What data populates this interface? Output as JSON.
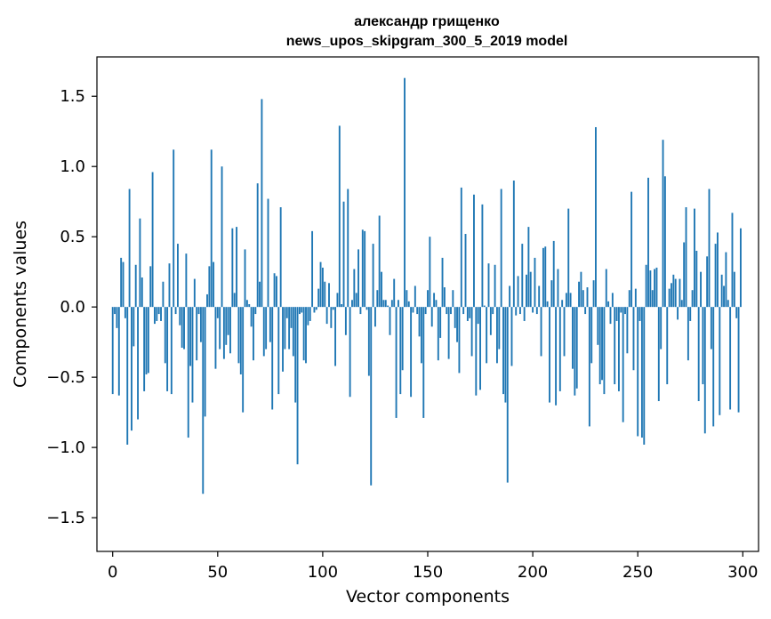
{
  "chart_data": {
    "type": "bar",
    "title": "александр грищенко",
    "subtitle": "news_upos_skipgram_300_5_2019 model",
    "xlabel": "Vector components",
    "ylabel": "Components values",
    "xlim": [
      -7.5,
      307.5
    ],
    "ylim": [
      -1.74,
      1.78
    ],
    "grid": false,
    "bar_color": "#1f77b4",
    "xticks": [
      0,
      50,
      100,
      150,
      200,
      250,
      300
    ],
    "xtick_labels": [
      "0",
      "50",
      "100",
      "150",
      "200",
      "250",
      "300"
    ],
    "yticks": [
      -1.5,
      -1.0,
      -0.5,
      0.0,
      0.5,
      1.0,
      1.5
    ],
    "ytick_labels": [
      "−1.5",
      "−1.0",
      "−0.5",
      "0.0",
      "0.5",
      "1.0",
      "1.5"
    ],
    "values": [
      -0.62,
      -0.05,
      -0.15,
      -0.63,
      0.35,
      0.32,
      -0.08,
      -0.98,
      0.84,
      -0.88,
      -0.28,
      0.3,
      -0.8,
      0.63,
      0.21,
      -0.6,
      -0.48,
      -0.47,
      0.29,
      0.96,
      -0.12,
      -0.1,
      -0.05,
      -0.1,
      0.18,
      -0.4,
      -0.6,
      0.31,
      -0.62,
      1.12,
      -0.05,
      0.45,
      -0.13,
      -0.29,
      -0.3,
      0.38,
      -0.93,
      -0.42,
      -0.68,
      0.2,
      -0.38,
      -0.05,
      -0.25,
      -1.33,
      -0.78,
      0.09,
      0.29,
      1.12,
      0.32,
      -0.44,
      -0.08,
      -0.3,
      1.0,
      -0.37,
      -0.27,
      -0.2,
      -0.33,
      0.56,
      0.1,
      0.57,
      -0.4,
      -0.48,
      -0.75,
      0.41,
      0.05,
      0.02,
      -0.14,
      -0.38,
      -0.05,
      0.88,
      0.18,
      1.48,
      -0.35,
      -0.3,
      0.77,
      -0.25,
      -0.73,
      0.24,
      0.22,
      -0.62,
      0.71,
      -0.46,
      -0.3,
      -0.08,
      -0.3,
      -0.15,
      -0.35,
      -0.68,
      -1.12,
      -0.05,
      -0.04,
      -0.38,
      -0.4,
      -0.13,
      -0.1,
      0.54,
      -0.04,
      -0.02,
      0.13,
      0.32,
      0.28,
      0.18,
      -0.12,
      0.17,
      -0.15,
      -0.02,
      -0.42,
      0.1,
      1.29,
      0.02,
      0.75,
      -0.2,
      0.84,
      -0.64,
      0.05,
      0.27,
      0.1,
      0.41,
      -0.05,
      0.55,
      0.54,
      -0.02,
      -0.49,
      -1.27,
      0.45,
      -0.14,
      0.12,
      0.65,
      0.25,
      0.05,
      0.05,
      0.01,
      -0.2,
      0.05,
      0.2,
      -0.79,
      0.05,
      -0.62,
      -0.45,
      1.63,
      0.12,
      0.04,
      -0.64,
      -0.04,
      0.15,
      -0.05,
      -0.21,
      -0.4,
      -0.79,
      -0.05,
      0.12,
      0.5,
      -0.14,
      0.1,
      0.05,
      -0.38,
      -0.22,
      0.35,
      0.14,
      -0.05,
      -0.37,
      -0.05,
      0.12,
      -0.15,
      -0.25,
      -0.47,
      0.85,
      -0.05,
      0.52,
      -0.1,
      -0.08,
      -0.35,
      0.8,
      -0.63,
      -0.12,
      -0.59,
      0.73,
      0.01,
      -0.4,
      0.31,
      -0.2,
      -0.05,
      0.3,
      -0.4,
      -0.3,
      0.84,
      -0.62,
      -0.68,
      -1.25,
      0.15,
      -0.42,
      0.9,
      -0.06,
      0.22,
      -0.05,
      0.45,
      -0.1,
      0.23,
      0.57,
      0.25,
      -0.04,
      0.35,
      -0.05,
      0.15,
      -0.35,
      0.42,
      0.43,
      0.04,
      -0.68,
      0.19,
      0.47,
      -0.7,
      0.27,
      -0.6,
      0.05,
      -0.35,
      0.1,
      0.7,
      0.1,
      -0.44,
      -0.63,
      -0.58,
      0.18,
      0.25,
      0.12,
      -0.05,
      0.14,
      -0.85,
      -0.4,
      0.19,
      1.28,
      -0.27,
      -0.55,
      -0.52,
      -0.62,
      0.27,
      0.04,
      -0.12,
      0.1,
      -0.55,
      -0.1,
      -0.6,
      -0.04,
      -0.82,
      -0.05,
      -0.33,
      0.12,
      0.82,
      -0.45,
      0.13,
      -0.92,
      -0.1,
      -0.93,
      -0.98,
      0.3,
      0.92,
      0.26,
      0.12,
      0.27,
      0.28,
      -0.67,
      -0.3,
      1.19,
      0.93,
      -0.55,
      0.13,
      0.17,
      0.23,
      0.2,
      -0.09,
      0.2,
      0.05,
      0.46,
      0.71,
      -0.38,
      -0.1,
      0.12,
      0.7,
      0.4,
      -0.67,
      0.25,
      -0.55,
      -0.9,
      0.36,
      0.84,
      -0.3,
      -0.85,
      0.45,
      0.53,
      -0.77,
      0.23,
      0.15,
      0.39,
      0.05,
      -0.73,
      0.67,
      0.25,
      -0.08,
      -0.75,
      0.56
    ]
  }
}
